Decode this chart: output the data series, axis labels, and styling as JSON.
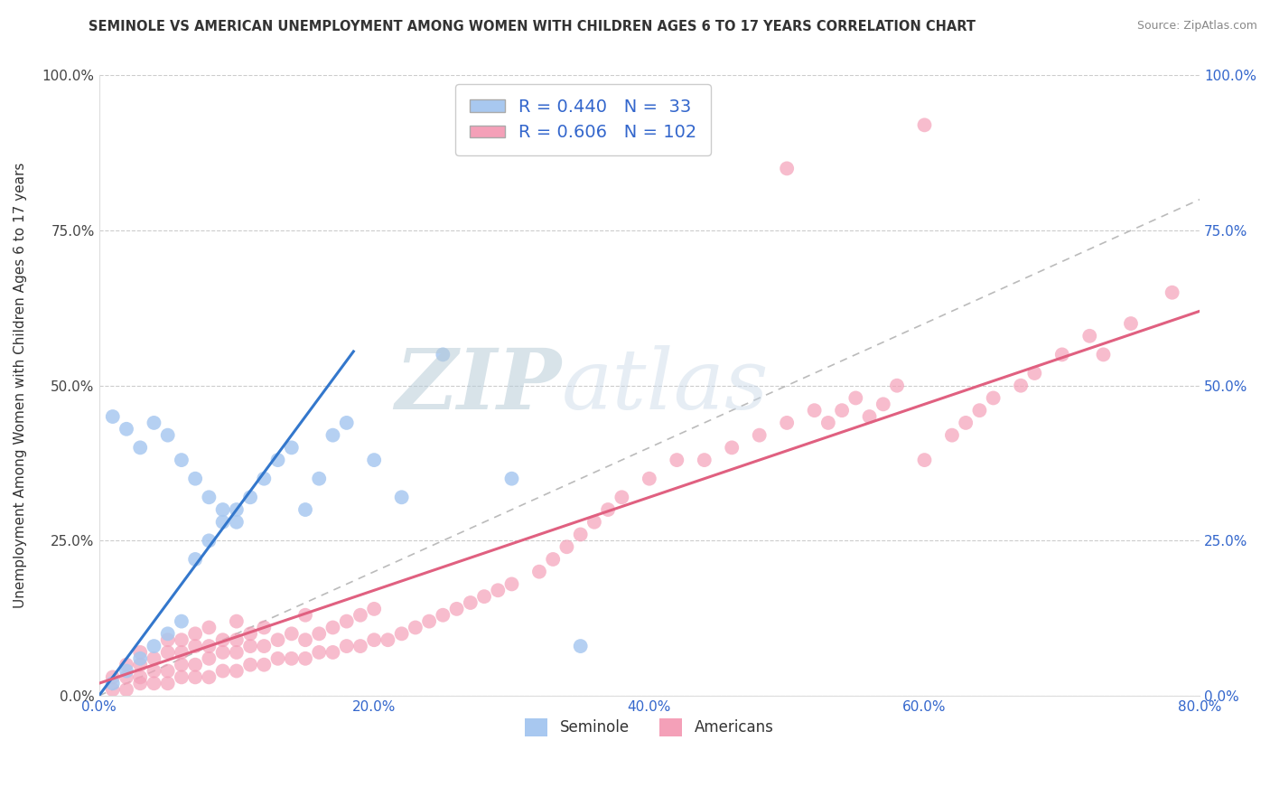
{
  "title": "SEMINOLE VS AMERICAN UNEMPLOYMENT AMONG WOMEN WITH CHILDREN AGES 6 TO 17 YEARS CORRELATION CHART",
  "source": "Source: ZipAtlas.com",
  "ylabel": "Unemployment Among Women with Children Ages 6 to 17 years",
  "xmin": 0.0,
  "xmax": 0.8,
  "ymin": 0.0,
  "ymax": 1.0,
  "xticks": [
    0.0,
    0.2,
    0.4,
    0.6,
    0.8
  ],
  "xtick_labels": [
    "0.0%",
    "20.0%",
    "40.0%",
    "60.0%",
    "80.0%"
  ],
  "yticks": [
    0.0,
    0.25,
    0.5,
    0.75,
    1.0
  ],
  "ytick_labels": [
    "0.0%",
    "25.0%",
    "50.0%",
    "75.0%",
    "100.0%"
  ],
  "seminole_color": "#a8c8f0",
  "americans_color": "#f4a0b8",
  "seminole_line_color": "#3377cc",
  "americans_line_color": "#e06080",
  "ref_line_color": "#bbbbbb",
  "background_color": "#ffffff",
  "watermark": "ZIPatlas",
  "watermark_color": "#ccdde8",
  "legend_label_1": "R = 0.440   N =  33",
  "legend_label_2": "R = 0.606   N = 102",
  "bottom_legend_1": "Seminole",
  "bottom_legend_2": "Americans",
  "seminole_x": [
    0.01,
    0.01,
    0.02,
    0.02,
    0.03,
    0.03,
    0.04,
    0.04,
    0.05,
    0.05,
    0.06,
    0.06,
    0.07,
    0.07,
    0.08,
    0.08,
    0.09,
    0.09,
    0.1,
    0.1,
    0.11,
    0.12,
    0.13,
    0.14,
    0.15,
    0.16,
    0.17,
    0.18,
    0.2,
    0.22,
    0.25,
    0.3,
    0.35
  ],
  "seminole_y": [
    0.02,
    0.45,
    0.04,
    0.43,
    0.06,
    0.4,
    0.08,
    0.44,
    0.1,
    0.42,
    0.12,
    0.38,
    0.22,
    0.35,
    0.25,
    0.32,
    0.28,
    0.3,
    0.3,
    0.28,
    0.32,
    0.35,
    0.38,
    0.4,
    0.3,
    0.35,
    0.42,
    0.44,
    0.38,
    0.32,
    0.55,
    0.35,
    0.08
  ],
  "americans_x": [
    0.01,
    0.01,
    0.02,
    0.02,
    0.02,
    0.03,
    0.03,
    0.03,
    0.03,
    0.04,
    0.04,
    0.04,
    0.05,
    0.05,
    0.05,
    0.05,
    0.06,
    0.06,
    0.06,
    0.06,
    0.07,
    0.07,
    0.07,
    0.07,
    0.08,
    0.08,
    0.08,
    0.08,
    0.09,
    0.09,
    0.09,
    0.1,
    0.1,
    0.1,
    0.1,
    0.11,
    0.11,
    0.11,
    0.12,
    0.12,
    0.12,
    0.13,
    0.13,
    0.14,
    0.14,
    0.15,
    0.15,
    0.15,
    0.16,
    0.16,
    0.17,
    0.17,
    0.18,
    0.18,
    0.19,
    0.19,
    0.2,
    0.2,
    0.21,
    0.22,
    0.23,
    0.24,
    0.25,
    0.26,
    0.27,
    0.28,
    0.29,
    0.3,
    0.32,
    0.33,
    0.34,
    0.35,
    0.36,
    0.37,
    0.38,
    0.4,
    0.42,
    0.44,
    0.46,
    0.48,
    0.5,
    0.52,
    0.53,
    0.54,
    0.55,
    0.56,
    0.57,
    0.58,
    0.6,
    0.62,
    0.63,
    0.64,
    0.65,
    0.67,
    0.68,
    0.7,
    0.72,
    0.73,
    0.75,
    0.78,
    0.5,
    0.6
  ],
  "americans_y": [
    0.01,
    0.03,
    0.01,
    0.03,
    0.05,
    0.02,
    0.03,
    0.05,
    0.07,
    0.02,
    0.04,
    0.06,
    0.02,
    0.04,
    0.07,
    0.09,
    0.03,
    0.05,
    0.07,
    0.09,
    0.03,
    0.05,
    0.08,
    0.1,
    0.03,
    0.06,
    0.08,
    0.11,
    0.04,
    0.07,
    0.09,
    0.04,
    0.07,
    0.09,
    0.12,
    0.05,
    0.08,
    0.1,
    0.05,
    0.08,
    0.11,
    0.06,
    0.09,
    0.06,
    0.1,
    0.06,
    0.09,
    0.13,
    0.07,
    0.1,
    0.07,
    0.11,
    0.08,
    0.12,
    0.08,
    0.13,
    0.09,
    0.14,
    0.09,
    0.1,
    0.11,
    0.12,
    0.13,
    0.14,
    0.15,
    0.16,
    0.17,
    0.18,
    0.2,
    0.22,
    0.24,
    0.26,
    0.28,
    0.3,
    0.32,
    0.35,
    0.38,
    0.38,
    0.4,
    0.42,
    0.44,
    0.46,
    0.44,
    0.46,
    0.48,
    0.45,
    0.47,
    0.5,
    0.38,
    0.42,
    0.44,
    0.46,
    0.48,
    0.5,
    0.52,
    0.55,
    0.58,
    0.55,
    0.6,
    0.65,
    0.85,
    0.92
  ],
  "seminole_line_x": [
    0.0,
    0.185
  ],
  "seminole_line_y": [
    0.0,
    0.555
  ],
  "americans_line_x": [
    0.0,
    0.8
  ],
  "americans_line_y": [
    0.02,
    0.62
  ]
}
